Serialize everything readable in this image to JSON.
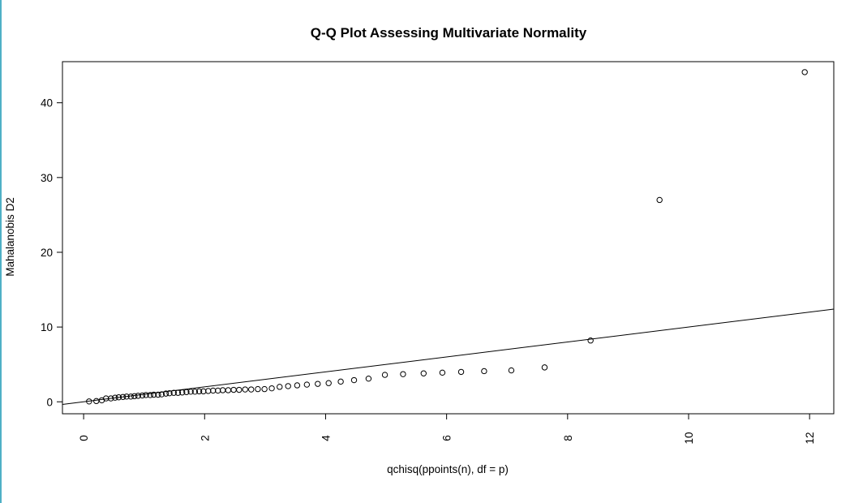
{
  "chart_data": {
    "type": "scatter",
    "title": "Q-Q Plot Assessing Multivariate Normality",
    "xlabel": "qchisq(ppoints(n), df = p)",
    "ylabel": "Mahalanobis D2",
    "xlim": [
      -0.35,
      12.4
    ],
    "ylim": [
      -1.6,
      45.5
    ],
    "xticks": [
      0,
      2,
      4,
      6,
      8,
      10,
      12
    ],
    "yticks": [
      0,
      10,
      20,
      30,
      40
    ],
    "grid": false,
    "legend": "none",
    "reference_line": {
      "intercept": 0,
      "slope": 1
    },
    "points": [
      [
        0.09,
        0.05
      ],
      [
        0.21,
        0.1
      ],
      [
        0.3,
        0.2
      ],
      [
        0.37,
        0.45
      ],
      [
        0.45,
        0.45
      ],
      [
        0.52,
        0.55
      ],
      [
        0.58,
        0.6
      ],
      [
        0.65,
        0.65
      ],
      [
        0.71,
        0.7
      ],
      [
        0.78,
        0.7
      ],
      [
        0.84,
        0.75
      ],
      [
        0.9,
        0.8
      ],
      [
        0.97,
        0.85
      ],
      [
        1.03,
        0.9
      ],
      [
        1.1,
        0.9
      ],
      [
        1.16,
        0.95
      ],
      [
        1.23,
        0.95
      ],
      [
        1.29,
        1.0
      ],
      [
        1.36,
        1.1
      ],
      [
        1.42,
        1.15
      ],
      [
        1.49,
        1.2
      ],
      [
        1.56,
        1.2
      ],
      [
        1.63,
        1.25
      ],
      [
        1.7,
        1.3
      ],
      [
        1.77,
        1.35
      ],
      [
        1.84,
        1.35
      ],
      [
        1.91,
        1.4
      ],
      [
        1.98,
        1.4
      ],
      [
        2.06,
        1.45
      ],
      [
        2.14,
        1.5
      ],
      [
        2.22,
        1.5
      ],
      [
        2.3,
        1.55
      ],
      [
        2.39,
        1.55
      ],
      [
        2.48,
        1.6
      ],
      [
        2.57,
        1.6
      ],
      [
        2.67,
        1.65
      ],
      [
        2.77,
        1.65
      ],
      [
        2.88,
        1.7
      ],
      [
        2.99,
        1.7
      ],
      [
        3.11,
        1.8
      ],
      [
        3.24,
        2.0
      ],
      [
        3.38,
        2.1
      ],
      [
        3.53,
        2.2
      ],
      [
        3.69,
        2.3
      ],
      [
        3.87,
        2.4
      ],
      [
        4.05,
        2.5
      ],
      [
        4.25,
        2.7
      ],
      [
        4.47,
        2.9
      ],
      [
        4.71,
        3.1
      ],
      [
        4.98,
        3.6
      ],
      [
        5.28,
        3.7
      ],
      [
        5.62,
        3.8
      ],
      [
        5.93,
        3.9
      ],
      [
        6.24,
        4.0
      ],
      [
        6.62,
        4.1
      ],
      [
        7.07,
        4.2
      ],
      [
        7.62,
        4.6
      ],
      [
        8.38,
        8.2
      ],
      [
        9.52,
        27.0
      ],
      [
        11.92,
        44.1
      ]
    ]
  }
}
